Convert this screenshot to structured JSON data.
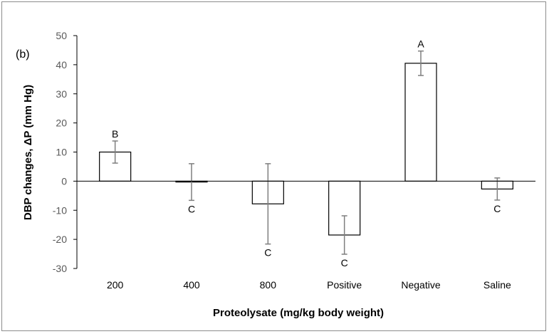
{
  "chart_data": {
    "type": "bar",
    "panel_label": "(b)",
    "categories": [
      "200",
      "400",
      "800",
      "Positive",
      "Negative",
      "Saline"
    ],
    "series": [
      {
        "values": [
          10.0,
          -0.3,
          -7.8,
          -18.5,
          40.5,
          -2.7
        ],
        "error": [
          3.8,
          6.3,
          13.8,
          6.6,
          4.2,
          3.8
        ],
        "letters": [
          "B",
          "C",
          "C",
          "C",
          "A",
          "C"
        ]
      }
    ],
    "xlabel": "Proteolysate (mg/kg body weight)",
    "ylabel": "DBP changes, ΔP (mm Hg)",
    "ylim": [
      -30,
      50
    ],
    "yticks": [
      50,
      40,
      30,
      20,
      10,
      0,
      -10,
      -20,
      -30
    ],
    "grid": false,
    "legend": "none",
    "colors": {
      "bar_fill": "#ffffff",
      "bar_stroke": "#000000",
      "error_bar": "#7f7f7f"
    }
  }
}
